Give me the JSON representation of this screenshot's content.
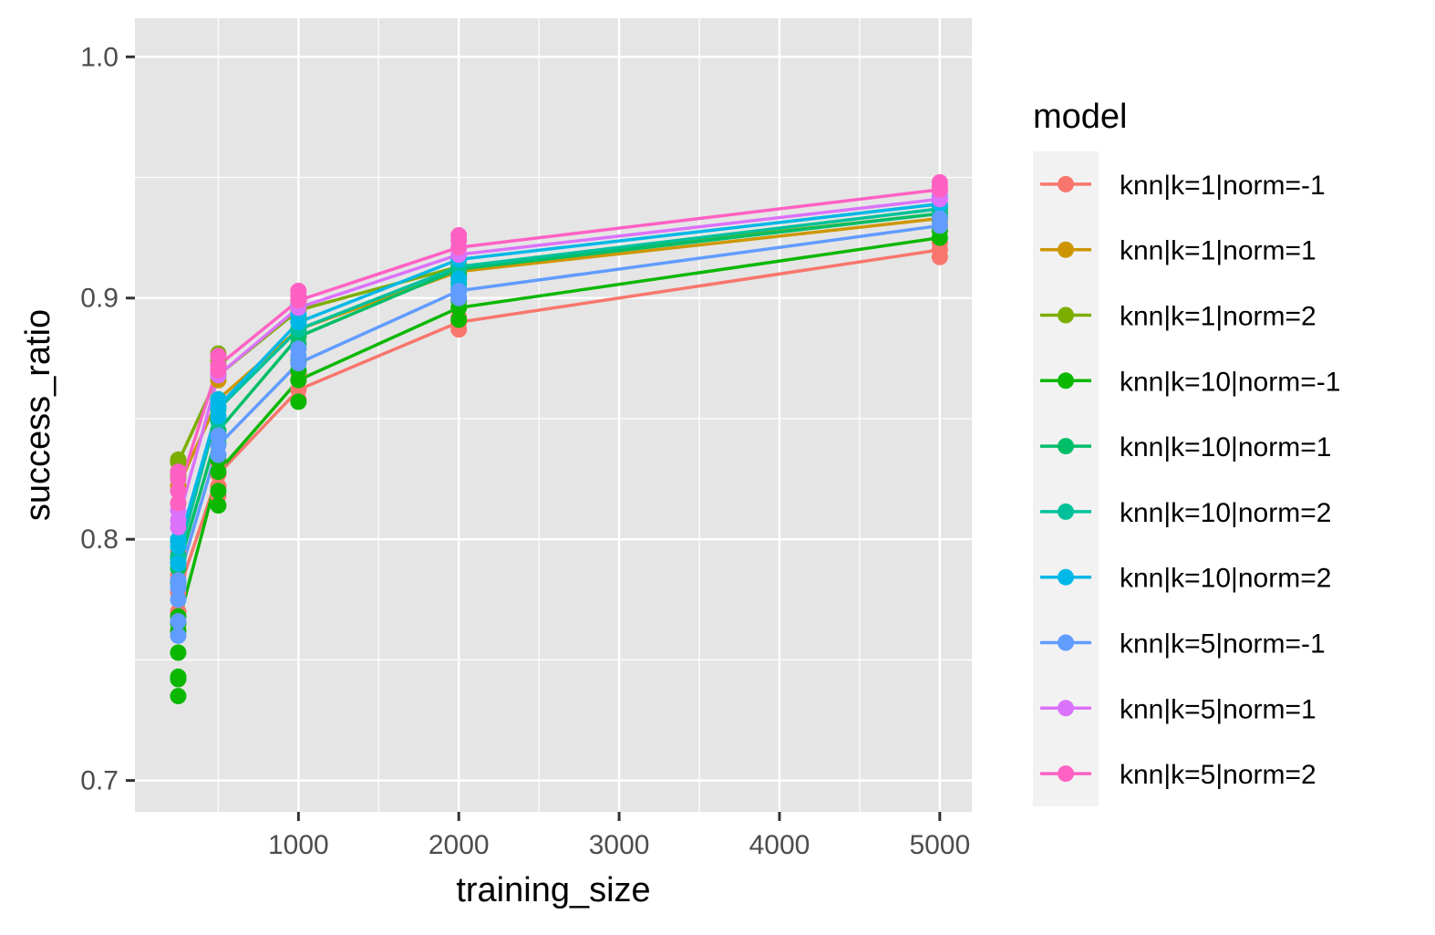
{
  "chart_data": {
    "type": "line",
    "xlabel": "training_size",
    "ylabel": "success_ratio",
    "xlim": [
      -20,
      5200
    ],
    "ylim": [
      0.687,
      1.016
    ],
    "x_major_ticks": [
      1000,
      2000,
      3000,
      4000,
      5000
    ],
    "x_minor_ticks": [
      500,
      1500,
      2500,
      3500,
      4500
    ],
    "x_tick_labels": [
      "1000",
      "2000",
      "3000",
      "4000",
      "5000"
    ],
    "y_major_ticks": [
      0.7,
      0.8,
      0.9,
      1.0
    ],
    "y_minor_ticks": [
      0.75,
      0.85,
      0.95
    ],
    "y_tick_labels": [
      "0.7",
      "0.8",
      "0.9",
      "1.0"
    ],
    "x": [
      250,
      500,
      1000,
      2000,
      5000
    ],
    "grid": true,
    "background": "#e5e5e5",
    "legend": {
      "title": "model",
      "position": "right"
    },
    "series": [
      {
        "name": "knn|k=1|norm=-1",
        "color": "#F8766D",
        "values": [
          0.778,
          0.827,
          0.862,
          0.89,
          0.92
        ],
        "points": [
          [
            250,
            0.778
          ],
          [
            250,
            0.785
          ],
          [
            250,
            0.795
          ],
          [
            250,
            0.77
          ],
          [
            500,
            0.827
          ],
          [
            500,
            0.822
          ],
          [
            500,
            0.832
          ],
          [
            500,
            0.818
          ],
          [
            1000,
            0.862
          ],
          [
            1000,
            0.858
          ],
          [
            1000,
            0.866
          ],
          [
            1000,
            0.869
          ],
          [
            2000,
            0.89
          ],
          [
            2000,
            0.887
          ],
          [
            2000,
            0.892
          ],
          [
            5000,
            0.92
          ],
          [
            5000,
            0.917
          ],
          [
            5000,
            0.923
          ]
        ]
      },
      {
        "name": "knn|k=1|norm=1",
        "color": "#CD9600",
        "values": [
          0.822,
          0.858,
          0.887,
          0.911,
          0.933
        ],
        "points": [
          [
            250,
            0.822
          ],
          [
            250,
            0.828
          ],
          [
            250,
            0.815
          ],
          [
            500,
            0.858
          ],
          [
            500,
            0.866
          ],
          [
            500,
            0.872
          ],
          [
            1000,
            0.887
          ],
          [
            1000,
            0.884
          ],
          [
            1000,
            0.891
          ],
          [
            2000,
            0.911
          ],
          [
            2000,
            0.908
          ],
          [
            2000,
            0.914
          ],
          [
            5000,
            0.933
          ],
          [
            5000,
            0.93
          ],
          [
            5000,
            0.936
          ]
        ]
      },
      {
        "name": "knn|k=1|norm=2",
        "color": "#7CAE00",
        "values": [
          0.832,
          0.868,
          0.895,
          0.913,
          0.935
        ],
        "points": [
          [
            250,
            0.832
          ],
          [
            250,
            0.833
          ],
          [
            250,
            0.826
          ],
          [
            500,
            0.868
          ],
          [
            500,
            0.877
          ],
          [
            500,
            0.874
          ],
          [
            1000,
            0.895
          ],
          [
            1000,
            0.892
          ],
          [
            1000,
            0.898
          ],
          [
            2000,
            0.913
          ],
          [
            2000,
            0.91
          ],
          [
            5000,
            0.935
          ],
          [
            5000,
            0.932
          ]
        ]
      },
      {
        "name": "knn|k=10|norm=-1",
        "color": "#0CB702",
        "values": [
          0.765,
          0.828,
          0.866,
          0.896,
          0.925
        ],
        "points": [
          [
            250,
            0.765
          ],
          [
            250,
            0.735
          ],
          [
            250,
            0.742
          ],
          [
            250,
            0.743
          ],
          [
            250,
            0.753
          ],
          [
            250,
            0.762
          ],
          [
            250,
            0.768
          ],
          [
            500,
            0.828
          ],
          [
            500,
            0.814
          ],
          [
            500,
            0.82
          ],
          [
            500,
            0.833
          ],
          [
            1000,
            0.866
          ],
          [
            1000,
            0.857
          ],
          [
            1000,
            0.87
          ],
          [
            1000,
            0.874
          ],
          [
            2000,
            0.896
          ],
          [
            2000,
            0.891
          ],
          [
            2000,
            0.899
          ],
          [
            5000,
            0.925
          ],
          [
            5000,
            0.928
          ]
        ]
      },
      {
        "name": "knn|k=10|norm=1",
        "color": "#00BE67",
        "values": [
          0.788,
          0.845,
          0.884,
          0.912,
          0.935
        ],
        "points": [
          [
            250,
            0.788
          ],
          [
            250,
            0.793
          ],
          [
            250,
            0.782
          ],
          [
            500,
            0.845
          ],
          [
            500,
            0.85
          ],
          [
            500,
            0.84
          ],
          [
            1000,
            0.884
          ],
          [
            1000,
            0.881
          ],
          [
            1000,
            0.887
          ],
          [
            2000,
            0.912
          ],
          [
            2000,
            0.909
          ],
          [
            5000,
            0.935
          ],
          [
            5000,
            0.938
          ]
        ]
      },
      {
        "name": "knn|k=10|norm=2",
        "color": "#00C19A",
        "values": [
          0.792,
          0.854,
          0.887,
          0.913,
          0.937
        ],
        "points": [
          [
            250,
            0.792
          ],
          [
            250,
            0.799
          ],
          [
            500,
            0.854
          ],
          [
            500,
            0.849
          ],
          [
            1000,
            0.887
          ],
          [
            1000,
            0.89
          ],
          [
            2000,
            0.913
          ],
          [
            2000,
            0.906
          ],
          [
            5000,
            0.937
          ],
          [
            5000,
            0.934
          ]
        ]
      },
      {
        "name": "knn|k=10|norm=2",
        "color": "#00B8E7",
        "values": [
          0.797,
          0.855,
          0.89,
          0.916,
          0.939
        ],
        "points": [
          [
            250,
            0.797
          ],
          [
            250,
            0.8
          ],
          [
            250,
            0.79
          ],
          [
            500,
            0.855
          ],
          [
            500,
            0.851
          ],
          [
            500,
            0.858
          ],
          [
            1000,
            0.89
          ],
          [
            1000,
            0.897
          ],
          [
            1000,
            0.893
          ],
          [
            2000,
            0.916
          ],
          [
            2000,
            0.904
          ],
          [
            2000,
            0.908
          ],
          [
            5000,
            0.939
          ],
          [
            5000,
            0.942
          ]
        ]
      },
      {
        "name": "knn|k=5|norm=-1",
        "color": "#619CFF",
        "values": [
          0.783,
          0.839,
          0.873,
          0.903,
          0.93
        ],
        "points": [
          [
            250,
            0.783
          ],
          [
            250,
            0.775
          ],
          [
            250,
            0.78
          ],
          [
            250,
            0.76
          ],
          [
            250,
            0.766
          ],
          [
            500,
            0.839
          ],
          [
            500,
            0.835
          ],
          [
            500,
            0.843
          ],
          [
            1000,
            0.873
          ],
          [
            1000,
            0.876
          ],
          [
            1000,
            0.879
          ],
          [
            2000,
            0.903
          ],
          [
            2000,
            0.9
          ],
          [
            5000,
            0.93
          ],
          [
            5000,
            0.933
          ]
        ]
      },
      {
        "name": "knn|k=5|norm=1",
        "color": "#DB72FB",
        "values": [
          0.808,
          0.868,
          0.896,
          0.918,
          0.941
        ],
        "points": [
          [
            250,
            0.808
          ],
          [
            250,
            0.812
          ],
          [
            250,
            0.805
          ],
          [
            500,
            0.868
          ],
          [
            500,
            0.872
          ],
          [
            1000,
            0.896
          ],
          [
            1000,
            0.899
          ],
          [
            2000,
            0.918
          ],
          [
            2000,
            0.921
          ],
          [
            5000,
            0.941
          ],
          [
            5000,
            0.944
          ]
        ]
      },
      {
        "name": "knn|k=5|norm=2",
        "color": "#FF61C3",
        "values": [
          0.82,
          0.872,
          0.899,
          0.921,
          0.945
        ],
        "points": [
          [
            250,
            0.82
          ],
          [
            250,
            0.828
          ],
          [
            250,
            0.815
          ],
          [
            250,
            0.825
          ],
          [
            500,
            0.872
          ],
          [
            500,
            0.876
          ],
          [
            500,
            0.87
          ],
          [
            1000,
            0.899
          ],
          [
            1000,
            0.903
          ],
          [
            1000,
            0.901
          ],
          [
            2000,
            0.921
          ],
          [
            2000,
            0.926
          ],
          [
            2000,
            0.924
          ],
          [
            5000,
            0.945
          ],
          [
            5000,
            0.948
          ],
          [
            5000,
            0.946
          ]
        ]
      }
    ]
  }
}
